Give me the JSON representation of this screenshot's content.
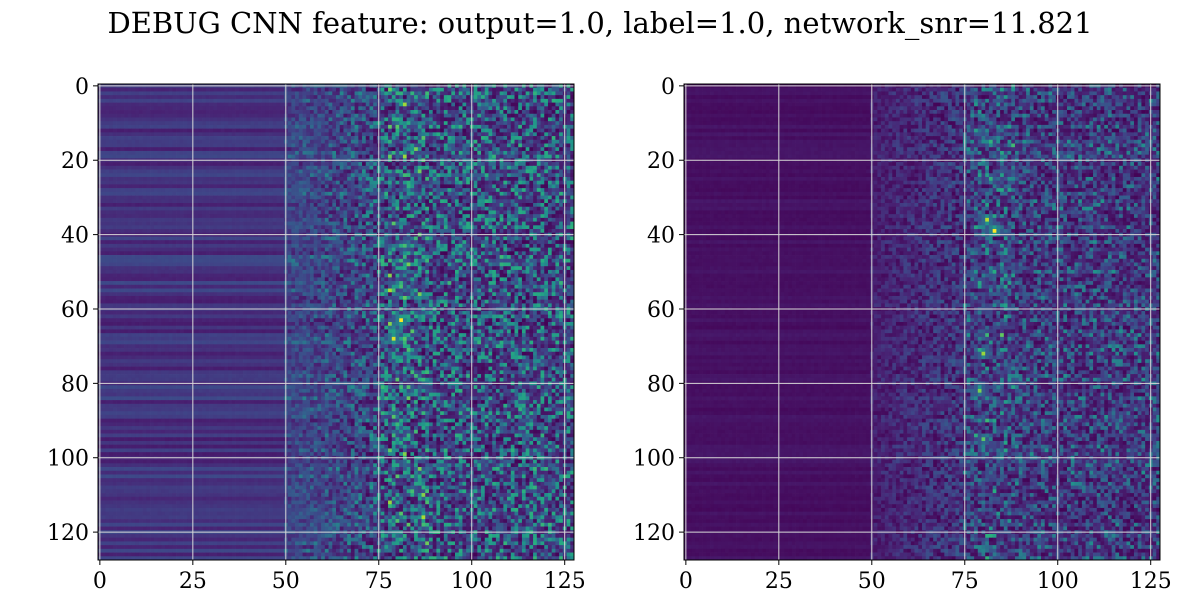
{
  "figure": {
    "title": "DEBUG CNN feature: output=1.0, label=1.0, network_snr=11.821"
  },
  "chart_data": [
    {
      "type": "heatmap",
      "name": "left-feature-map",
      "colormap": "viridis",
      "grid": true,
      "shape": [
        128,
        128
      ],
      "xlim": [
        -0.5,
        127.5
      ],
      "ylim": [
        127.5,
        -0.5
      ],
      "x_ticks": [
        0,
        25,
        50,
        75,
        100,
        125
      ],
      "y_ticks": [
        0,
        20,
        40,
        60,
        80,
        100,
        120
      ],
      "x_tick_labels": [
        "0",
        "25",
        "50",
        "75",
        "100",
        "125"
      ],
      "y_tick_labels": [
        "0",
        "20",
        "40",
        "60",
        "80",
        "100",
        "120"
      ],
      "structure": {
        "smooth_region_cols": [
          0,
          50
        ],
        "smooth_level": 0.18,
        "transition_cols": [
          50,
          75
        ],
        "noisy_region_cols": [
          75,
          127
        ],
        "noisy_level": 0.3,
        "hotspots": [
          {
            "row": 63,
            "col": 81,
            "value": 1.0
          },
          {
            "row": 68,
            "col": 79,
            "value": 0.95
          },
          {
            "row": 43,
            "col": 82,
            "value": 0.7
          },
          {
            "row": 27,
            "col": 83,
            "value": 0.65
          },
          {
            "row": 109,
            "col": 84,
            "value": 0.7
          },
          {
            "row": 3,
            "col": 85,
            "value": 0.6
          }
        ]
      }
    },
    {
      "type": "heatmap",
      "name": "right-feature-map",
      "colormap": "viridis",
      "grid": true,
      "shape": [
        128,
        128
      ],
      "xlim": [
        -0.5,
        127.5
      ],
      "ylim": [
        127.5,
        -0.5
      ],
      "x_ticks": [
        0,
        25,
        50,
        75,
        100,
        125
      ],
      "y_ticks": [
        0,
        20,
        40,
        60,
        80,
        100,
        120
      ],
      "x_tick_labels": [
        "0",
        "25",
        "50",
        "75",
        "100",
        "125"
      ],
      "y_tick_labels": [
        "0",
        "20",
        "40",
        "60",
        "80",
        "100",
        "120"
      ],
      "structure": {
        "smooth_region_cols": [
          0,
          50
        ],
        "smooth_level": 0.05,
        "transition_cols": [
          50,
          75
        ],
        "noisy_region_cols": [
          75,
          127
        ],
        "noisy_level": 0.22,
        "hotspots": [
          {
            "row": 39,
            "col": 83,
            "value": 1.0
          },
          {
            "row": 36,
            "col": 81,
            "value": 0.9
          },
          {
            "row": 72,
            "col": 80,
            "value": 0.85
          },
          {
            "row": 82,
            "col": 79,
            "value": 0.8
          },
          {
            "row": 95,
            "col": 80,
            "value": 0.75
          },
          {
            "row": 15,
            "col": 82,
            "value": 0.65
          },
          {
            "row": 25,
            "col": 82,
            "value": 0.65
          },
          {
            "row": 53,
            "col": 79,
            "value": 0.6
          }
        ]
      }
    }
  ]
}
